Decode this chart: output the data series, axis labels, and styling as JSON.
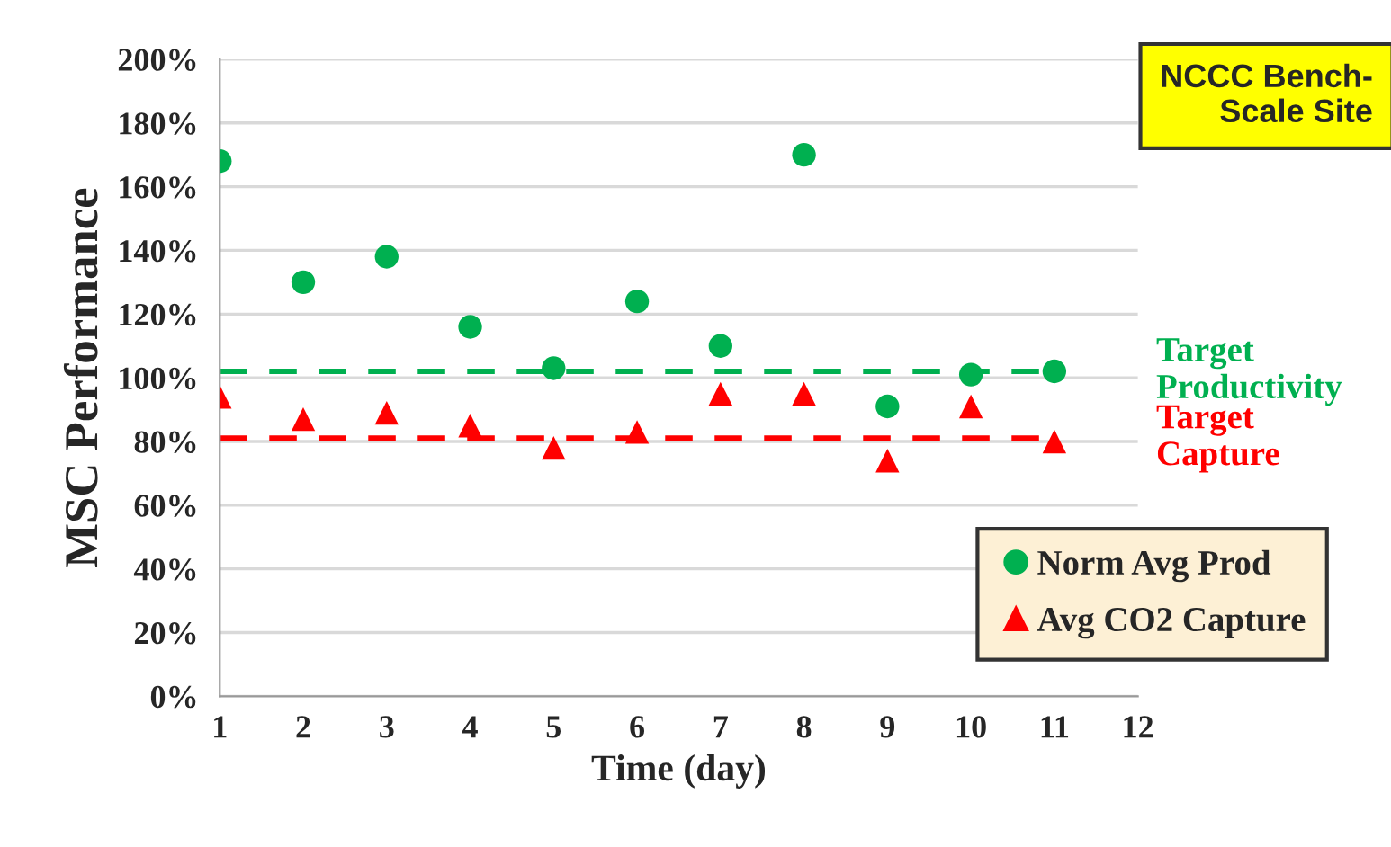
{
  "chart_data": {
    "type": "scatter",
    "xlabel": "Time (day)",
    "ylabel": "MSC Performance",
    "x": [
      1,
      2,
      3,
      4,
      5,
      6,
      7,
      8,
      9,
      10,
      11
    ],
    "series": [
      {
        "name": "Norm Avg Prod",
        "color": "#00b050",
        "marker": "circle",
        "values": [
          168,
          130,
          138,
          116,
          103,
          124,
          110,
          170,
          91,
          101,
          102
        ]
      },
      {
        "name": "Avg CO2 Capture",
        "color": "#ff0000",
        "marker": "triangle",
        "values": [
          94,
          87,
          89,
          85,
          78,
          83,
          95,
          95,
          74,
          91,
          80
        ]
      }
    ],
    "xlim": [
      1,
      12
    ],
    "xticks": [
      1,
      2,
      3,
      4,
      5,
      6,
      7,
      8,
      9,
      10,
      11,
      12
    ],
    "ylim": [
      0,
      200
    ],
    "yticks": [
      {
        "value": 0,
        "label": "0%"
      },
      {
        "value": 20,
        "label": "20%"
      },
      {
        "value": 40,
        "label": "40%"
      },
      {
        "value": 60,
        "label": "60%"
      },
      {
        "value": 80,
        "label": "80%"
      },
      {
        "value": 100,
        "label": "100%"
      },
      {
        "value": 120,
        "label": "120%"
      },
      {
        "value": 140,
        "label": "140%"
      },
      {
        "value": 160,
        "label": "160%"
      },
      {
        "value": 180,
        "label": "180%"
      },
      {
        "value": 200,
        "label": "200%"
      }
    ],
    "ref_lines": [
      {
        "axis": "y",
        "value": 102,
        "label": "Target\nProductivity",
        "color": "#00b050",
        "line_style": "dashed"
      },
      {
        "axis": "y",
        "value": 81,
        "label": "Target\nCapture",
        "color": "#ff0000",
        "line_style": "dashed"
      }
    ],
    "annotations": [
      "NCCC Bench-Scale Site"
    ],
    "grid": "y",
    "legend": "bottom right"
  }
}
